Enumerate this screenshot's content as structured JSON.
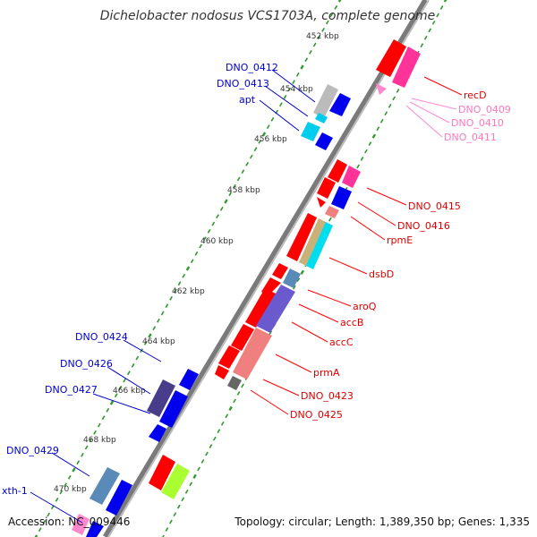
{
  "title": "Dichelobacter nodosus VCS1703A, complete genome",
  "footer": {
    "accession": "Accession: NC_009446",
    "topology": "Topology: circular; Length: 1,389,350 bp; Genes: 1,335"
  },
  "scale_labels": [
    "452 kbp",
    "454 kbp",
    "456 kbp",
    "458 kbp",
    "460 kbp",
    "462 kbp",
    "464 kbp",
    "466 kbp",
    "468 kbp",
    "470 kbp"
  ],
  "colors": {
    "backbone": "#7a7a7a",
    "scale_dots": "#2e9a2e",
    "left_label": "#0000cc",
    "red": "#ff0000",
    "pink": "#ff3399",
    "blue": "#0000ee",
    "cyan": "#00ccee",
    "purple": "#6a5acd",
    "salmon": "#f08080",
    "tan": "#c8b27a",
    "steel": "#5a8ab8",
    "lime": "#aaff33",
    "grey": "#bbbbbb",
    "darkgrey": "#666666"
  },
  "genes_left": [
    {
      "name": "DNO_0412"
    },
    {
      "name": "DNO_0413"
    },
    {
      "name": "apt"
    },
    {
      "name": "DNO_0424"
    },
    {
      "name": "DNO_0426"
    },
    {
      "name": "DNO_0427"
    },
    {
      "name": "DNO_0429"
    },
    {
      "name": "xth-1"
    }
  ],
  "genes_right": [
    {
      "name": "recD",
      "color": "#ff0000"
    },
    {
      "name": "DNO_0409",
      "color": "#ff88cc"
    },
    {
      "name": "DNO_0410",
      "color": "#ff88cc"
    },
    {
      "name": "DNO_0411",
      "color": "#ff88cc"
    },
    {
      "name": "DNO_0415",
      "color": "#ff0000"
    },
    {
      "name": "DNO_0416",
      "color": "#ff0000"
    },
    {
      "name": "rpmE",
      "color": "#ff0000"
    },
    {
      "name": "dsbD",
      "color": "#ff0000"
    },
    {
      "name": "aroQ",
      "color": "#ff0000"
    },
    {
      "name": "accB",
      "color": "#ff0000"
    },
    {
      "name": "accC",
      "color": "#ff0000"
    },
    {
      "name": "prmA",
      "color": "#ff0000"
    },
    {
      "name": "DNO_0423",
      "color": "#ff0000"
    },
    {
      "name": "DNO_0425",
      "color": "#ff0000"
    }
  ]
}
